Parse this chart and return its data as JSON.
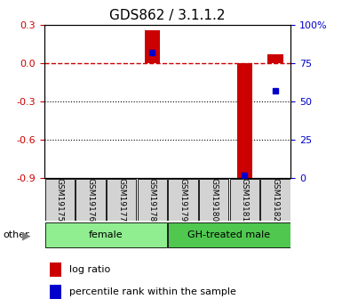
{
  "title": "GDS862 / 3.1.1.2",
  "samples": [
    "GSM19175",
    "GSM19176",
    "GSM19177",
    "GSM19178",
    "GSM19179",
    "GSM19180",
    "GSM19181",
    "GSM19182"
  ],
  "log_ratio": [
    0.0,
    0.0,
    0.0,
    0.255,
    0.0,
    0.0,
    -0.92,
    0.065
  ],
  "percentile_rank": [
    null,
    null,
    null,
    82,
    null,
    null,
    2,
    57
  ],
  "ylim_left": [
    -0.9,
    0.3
  ],
  "ylim_right": [
    0,
    100
  ],
  "yticks_left": [
    0.3,
    0.0,
    -0.3,
    -0.6,
    -0.9
  ],
  "yticks_right": [
    100,
    75,
    50,
    25,
    0
  ],
  "ytick_labels_right": [
    "100%",
    "75",
    "50",
    "25",
    "0"
  ],
  "groups": [
    {
      "label": "female",
      "start": 0,
      "end": 3,
      "color": "#90EE90"
    },
    {
      "label": "GH-treated male",
      "start": 4,
      "end": 7,
      "color": "#50C850"
    }
  ],
  "bar_color": "#CC0000",
  "dot_color": "#0000CC",
  "zero_line_color": "#CC0000",
  "grid_color": "#000000",
  "bar_width": 0.5,
  "tick_label_color_left": "#CC0000",
  "tick_label_color_right": "#0000CC",
  "legend_log_ratio_color": "#CC0000",
  "legend_percentile_color": "#0000CC",
  "background_color": "#ffffff"
}
